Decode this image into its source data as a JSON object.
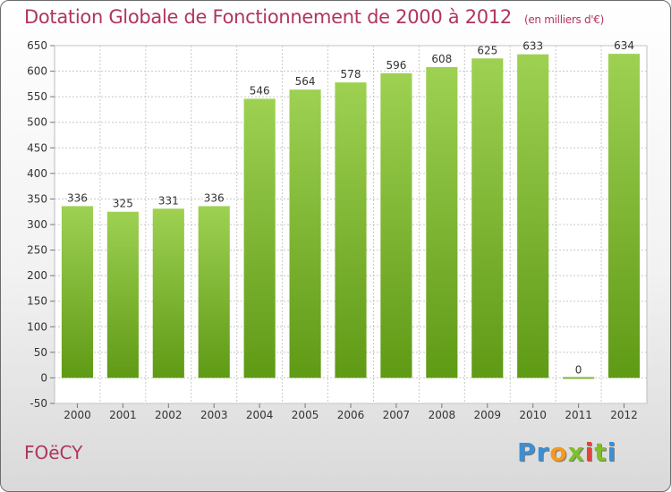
{
  "title": "Dotation Globale de Fonctionnement de 2000 à 2012",
  "subtitle": "(en milliers d'€)",
  "commune": "FOëCY",
  "logo": {
    "letters": [
      "P",
      "r",
      "o",
      "x",
      "i",
      "t",
      "i"
    ],
    "colors": [
      "#3b8fd6",
      "#3b8fd6",
      "#f39a1e",
      "#7fbf2a",
      "#e0443a",
      "#7fbf2a",
      "#3b8fd6"
    ]
  },
  "colors": {
    "bar_top": "#9ed152",
    "bar_bottom": "#5f9a15",
    "grid": "#c8c8c8",
    "title": "#b0355e"
  },
  "chart_data": {
    "type": "bar",
    "title": "Dotation Globale de Fonctionnement de 2000 à 2012",
    "subtitle": "(en milliers d'€)",
    "categories": [
      "2000",
      "2001",
      "2002",
      "2003",
      "2004",
      "2005",
      "2006",
      "2007",
      "2008",
      "2009",
      "2010",
      "2011",
      "2012"
    ],
    "values": [
      336,
      325,
      331,
      336,
      546,
      564,
      578,
      596,
      608,
      625,
      633,
      0,
      634
    ],
    "ylim": [
      -50,
      650
    ],
    "yticks": [
      -50,
      0,
      50,
      100,
      150,
      200,
      250,
      300,
      350,
      400,
      450,
      500,
      550,
      600,
      650
    ],
    "grid": true,
    "legend": "none"
  }
}
